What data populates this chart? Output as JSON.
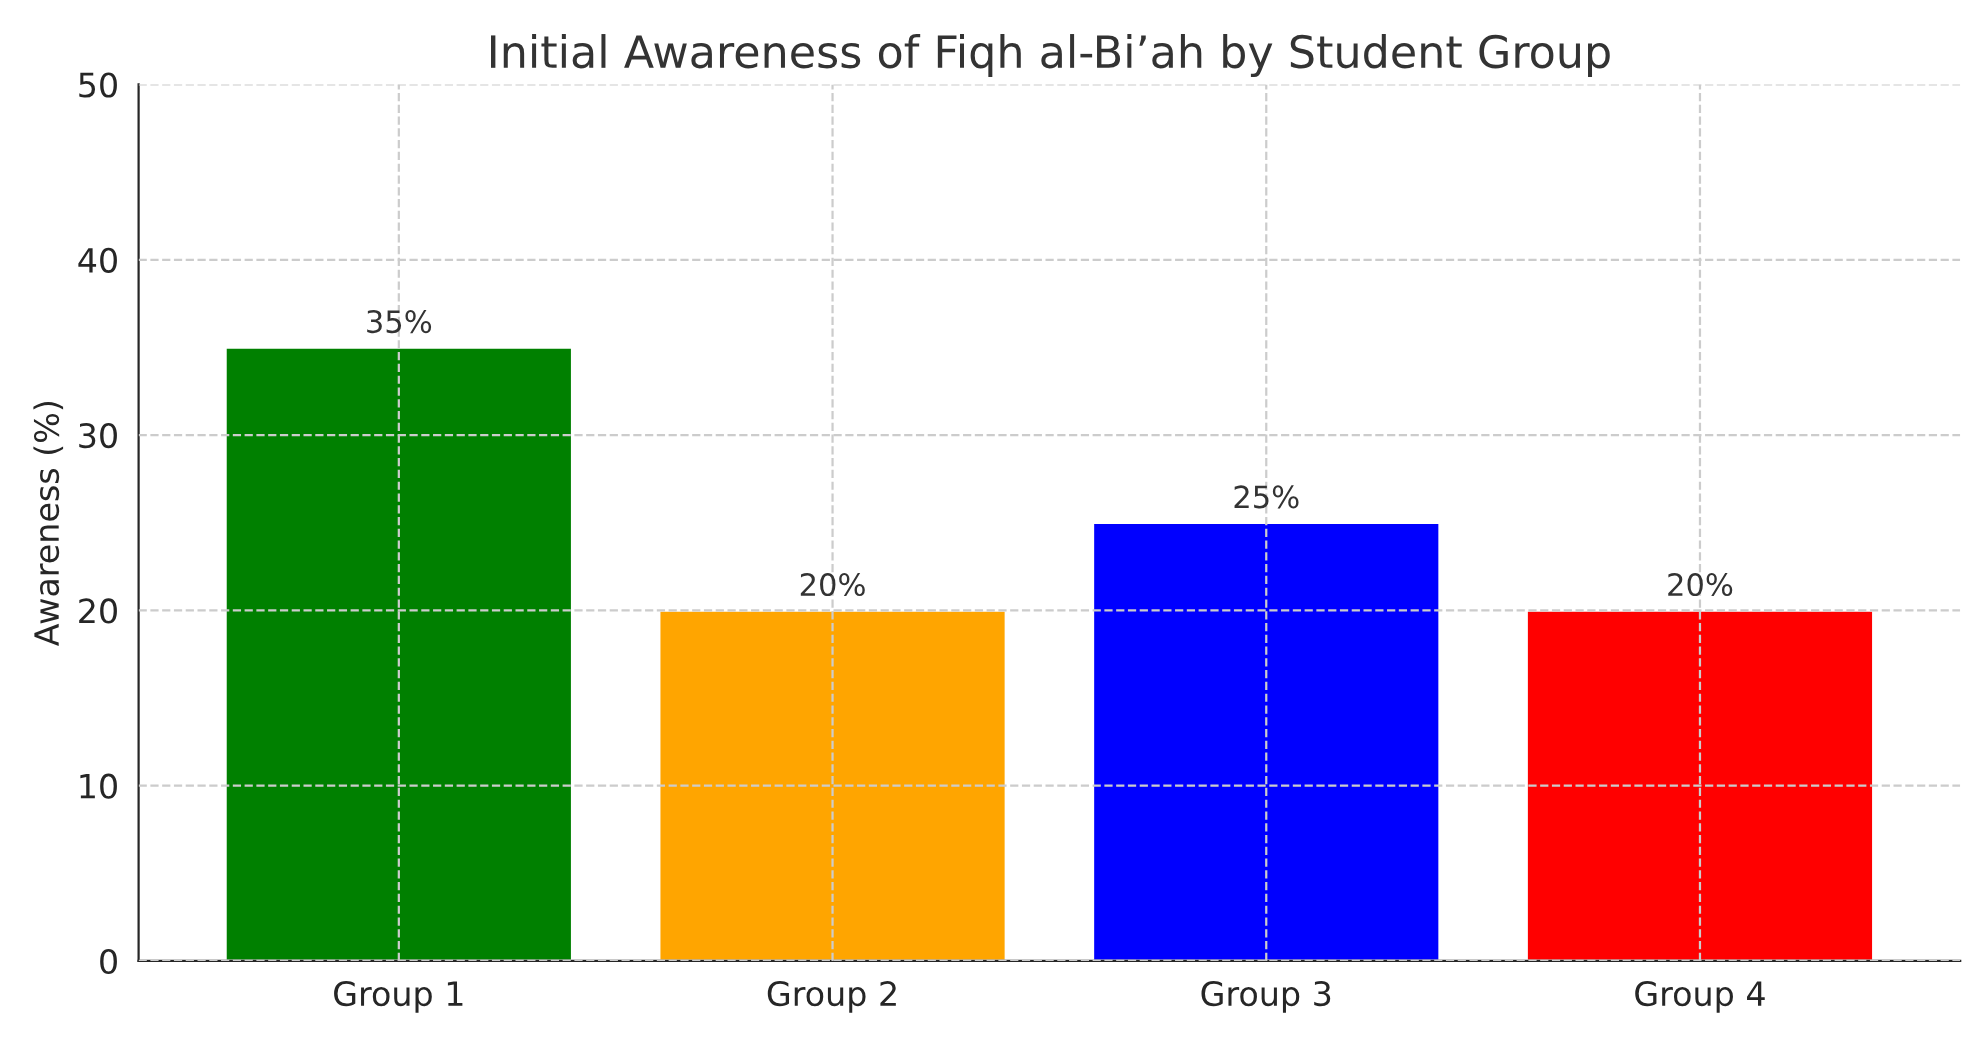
{
  "chart_data": {
    "type": "bar",
    "title": "Initial Awareness of Fiqh al-Bi’ah by Student Group",
    "ylabel": "Awareness (%)",
    "categories": [
      "Group 1",
      "Group 2",
      "Group 3",
      "Group 4"
    ],
    "values": [
      35,
      20,
      25,
      20
    ],
    "colors": [
      "#008000",
      "#ffa500",
      "#0000ff",
      "#ff0000"
    ],
    "value_labels": [
      "35%",
      "20%",
      "25%",
      "20%"
    ],
    "ylim": [
      0,
      50
    ],
    "yticks": [
      0,
      10,
      20,
      30,
      40,
      50
    ],
    "grid": true
  }
}
